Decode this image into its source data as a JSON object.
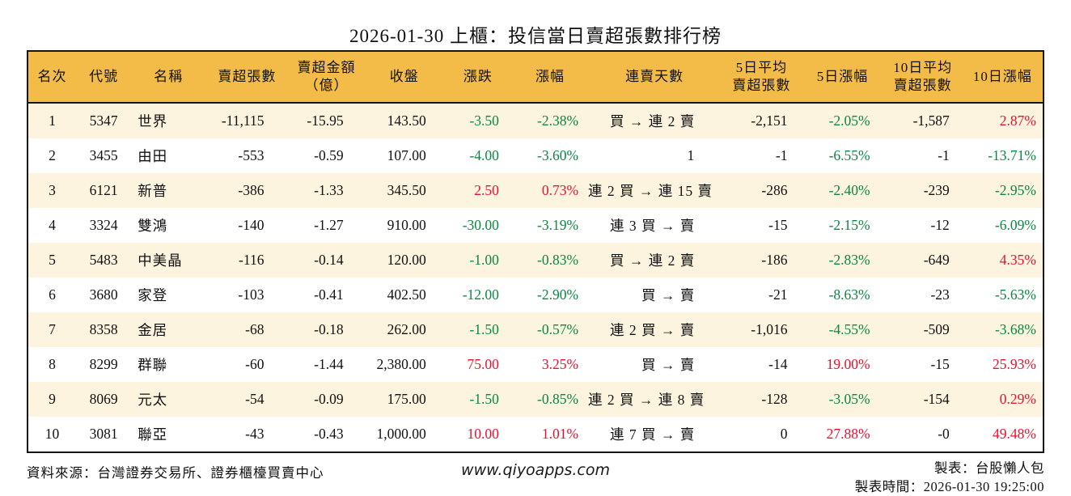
{
  "chart_data": {
    "type": "table",
    "title": "2026-01-30 上櫃：投信當日賣超張數排行榜",
    "columns": [
      {
        "lines": [
          "名次"
        ]
      },
      {
        "lines": [
          "代號"
        ]
      },
      {
        "lines": [
          "名稱"
        ]
      },
      {
        "lines": [
          "賣超張數"
        ]
      },
      {
        "lines": [
          "賣超金額",
          "（億）"
        ]
      },
      {
        "lines": [
          "收盤"
        ]
      },
      {
        "lines": [
          "漲跌"
        ]
      },
      {
        "lines": [
          "漲幅"
        ]
      },
      {
        "lines": [
          "連賣天數"
        ]
      },
      {
        "lines": [
          "5日平均",
          "賣超張數"
        ]
      },
      {
        "lines": [
          "5日漲幅"
        ]
      },
      {
        "lines": [
          "10日平均",
          "賣超張數"
        ]
      },
      {
        "lines": [
          "10日漲幅"
        ]
      }
    ],
    "rows": [
      {
        "rank": "1",
        "code": "5347",
        "name": "世界",
        "sell_volume": "-11,115",
        "sell_amount": "-15.95",
        "close": "143.50",
        "change": "-3.50",
        "change_pct": "-2.38%",
        "change_dir": "down",
        "streak": "買 → 連 2 賣",
        "avg5": "-2,151",
        "pct5": "-2.05%",
        "pct5_dir": "down",
        "avg10": "-1,587",
        "pct10": "2.87%",
        "pct10_dir": "up"
      },
      {
        "rank": "2",
        "code": "3455",
        "name": "由田",
        "sell_volume": "-553",
        "sell_amount": "-0.59",
        "close": "107.00",
        "change": "-4.00",
        "change_pct": "-3.60%",
        "change_dir": "down",
        "streak": "1",
        "avg5": "-1",
        "pct5": "-6.55%",
        "pct5_dir": "down",
        "avg10": "-1",
        "pct10": "-13.71%",
        "pct10_dir": "down"
      },
      {
        "rank": "3",
        "code": "6121",
        "name": "新普",
        "sell_volume": "-386",
        "sell_amount": "-1.33",
        "close": "345.50",
        "change": "2.50",
        "change_pct": "0.73%",
        "change_dir": "up",
        "streak": "連 2 買 → 連 15 賣",
        "avg5": "-286",
        "pct5": "-2.40%",
        "pct5_dir": "down",
        "avg10": "-239",
        "pct10": "-2.95%",
        "pct10_dir": "down"
      },
      {
        "rank": "4",
        "code": "3324",
        "name": "雙鴻",
        "sell_volume": "-140",
        "sell_amount": "-1.27",
        "close": "910.00",
        "change": "-30.00",
        "change_pct": "-3.19%",
        "change_dir": "down",
        "streak": "連 3 買 → 賣",
        "avg5": "-15",
        "pct5": "-2.15%",
        "pct5_dir": "down",
        "avg10": "-12",
        "pct10": "-6.09%",
        "pct10_dir": "down"
      },
      {
        "rank": "5",
        "code": "5483",
        "name": "中美晶",
        "sell_volume": "-116",
        "sell_amount": "-0.14",
        "close": "120.00",
        "change": "-1.00",
        "change_pct": "-0.83%",
        "change_dir": "down",
        "streak": "買 → 連 2 賣",
        "avg5": "-186",
        "pct5": "-2.83%",
        "pct5_dir": "down",
        "avg10": "-649",
        "pct10": "4.35%",
        "pct10_dir": "up"
      },
      {
        "rank": "6",
        "code": "3680",
        "name": "家登",
        "sell_volume": "-103",
        "sell_amount": "-0.41",
        "close": "402.50",
        "change": "-12.00",
        "change_pct": "-2.90%",
        "change_dir": "down",
        "streak": "買 → 賣",
        "avg5": "-21",
        "pct5": "-8.63%",
        "pct5_dir": "down",
        "avg10": "-23",
        "pct10": "-5.63%",
        "pct10_dir": "down"
      },
      {
        "rank": "7",
        "code": "8358",
        "name": "金居",
        "sell_volume": "-68",
        "sell_amount": "-0.18",
        "close": "262.00",
        "change": "-1.50",
        "change_pct": "-0.57%",
        "change_dir": "down",
        "streak": "連 2 買 → 賣",
        "avg5": "-1,016",
        "pct5": "-4.55%",
        "pct5_dir": "down",
        "avg10": "-509",
        "pct10": "-3.68%",
        "pct10_dir": "down"
      },
      {
        "rank": "8",
        "code": "8299",
        "name": "群聯",
        "sell_volume": "-60",
        "sell_amount": "-1.44",
        "close": "2,380.00",
        "change": "75.00",
        "change_pct": "3.25%",
        "change_dir": "up",
        "streak": "買 → 賣",
        "avg5": "-14",
        "pct5": "19.00%",
        "pct5_dir": "up",
        "avg10": "-15",
        "pct10": "25.93%",
        "pct10_dir": "up"
      },
      {
        "rank": "9",
        "code": "8069",
        "name": "元太",
        "sell_volume": "-54",
        "sell_amount": "-0.09",
        "close": "175.00",
        "change": "-1.50",
        "change_pct": "-0.85%",
        "change_dir": "down",
        "streak": "連 2 買 → 連 8 賣",
        "avg5": "-128",
        "pct5": "-3.05%",
        "pct5_dir": "down",
        "avg10": "-154",
        "pct10": "0.29%",
        "pct10_dir": "up"
      },
      {
        "rank": "10",
        "code": "3081",
        "name": "聯亞",
        "sell_volume": "-43",
        "sell_amount": "-0.43",
        "close": "1,000.00",
        "change": "10.00",
        "change_pct": "1.01%",
        "change_dir": "up",
        "streak": "連 7 買 → 賣",
        "avg5": "0",
        "pct5": "27.88%",
        "pct5_dir": "up",
        "avg10": "-0",
        "pct10": "49.48%",
        "pct10_dir": "up"
      }
    ]
  },
  "colors": {
    "header_bg": "#F3BC48",
    "row_stripe_bg": "#FCF4DE",
    "up_red": "#E8112D",
    "down_green": "#0B8740"
  },
  "footer": {
    "source": "資料來源：台灣證券交易所、證券櫃檯買賣中心",
    "website": "www.qiyoapps.com",
    "maker": "製表：台股懶人包",
    "made_time": "製表時間：2026-01-30 19:25:00"
  }
}
